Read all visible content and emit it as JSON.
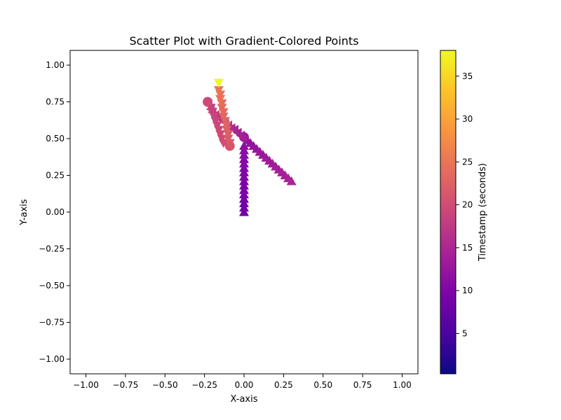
{
  "chart_data": {
    "type": "scatter",
    "title": "Scatter Plot with Gradient-Colored Points",
    "xlabel": "X-axis",
    "ylabel": "Y-axis",
    "xlim": [
      -1.1,
      1.1
    ],
    "ylim": [
      -1.1,
      1.1
    ],
    "x_ticks": [
      -1.0,
      -0.75,
      -0.5,
      -0.25,
      0.0,
      0.25,
      0.5,
      0.75,
      1.0
    ],
    "y_ticks": [
      -1.0,
      -0.75,
      -0.5,
      -0.25,
      0.0,
      0.25,
      0.5,
      0.75,
      1.0
    ],
    "x_tick_labels": [
      "−1.00",
      "−0.75",
      "−0.50",
      "−0.25",
      "0.00",
      "0.25",
      "0.50",
      "0.75",
      "1.00"
    ],
    "y_tick_labels": [
      "−1.00",
      "−0.75",
      "−0.50",
      "−0.25",
      "0.00",
      "0.25",
      "0.50",
      "0.75",
      "1.00"
    ],
    "grid": false,
    "colorbar": {
      "label": "Timestamp (seconds)",
      "colormap": "plasma",
      "range": [
        0.3,
        38
      ],
      "ticks": [
        5,
        10,
        15,
        20,
        25,
        30,
        35
      ],
      "tick_labels": [
        "5",
        "10",
        "15",
        "20",
        "25",
        "30",
        "35"
      ]
    },
    "series": [
      {
        "marker": "triangle-up",
        "points": [
          {
            "x": 0.0,
            "y": 0.0,
            "t": 8.5
          },
          {
            "x": 0.0,
            "y": 0.03,
            "t": 8.6
          },
          {
            "x": 0.0,
            "y": 0.06,
            "t": 8.8
          },
          {
            "x": 0.0,
            "y": 0.09,
            "t": 9.0
          },
          {
            "x": 0.0,
            "y": 0.12,
            "t": 9.2
          },
          {
            "x": 0.0,
            "y": 0.15,
            "t": 9.4
          },
          {
            "x": 0.0,
            "y": 0.18,
            "t": 9.6
          },
          {
            "x": 0.0,
            "y": 0.21,
            "t": 9.8
          },
          {
            "x": 0.0,
            "y": 0.24,
            "t": 10.0
          },
          {
            "x": 0.0,
            "y": 0.27,
            "t": 10.2
          },
          {
            "x": 0.0,
            "y": 0.3,
            "t": 10.4
          },
          {
            "x": 0.0,
            "y": 0.33,
            "t": 10.6
          },
          {
            "x": 0.0,
            "y": 0.36,
            "t": 10.8
          },
          {
            "x": 0.0,
            "y": 0.39,
            "t": 11.0
          },
          {
            "x": 0.0,
            "y": 0.42,
            "t": 11.2
          },
          {
            "x": 0.0,
            "y": 0.45,
            "t": 11.4
          }
        ]
      },
      {
        "marker": "triangle-up",
        "points": [
          {
            "x": 0.3,
            "y": 0.21,
            "t": 14.8
          },
          {
            "x": 0.28,
            "y": 0.23,
            "t": 14.6
          },
          {
            "x": 0.26,
            "y": 0.25,
            "t": 14.4
          },
          {
            "x": 0.24,
            "y": 0.27,
            "t": 14.2
          },
          {
            "x": 0.22,
            "y": 0.29,
            "t": 14.0
          },
          {
            "x": 0.2,
            "y": 0.31,
            "t": 13.8
          },
          {
            "x": 0.18,
            "y": 0.33,
            "t": 13.6
          },
          {
            "x": 0.16,
            "y": 0.35,
            "t": 13.4
          },
          {
            "x": 0.14,
            "y": 0.37,
            "t": 13.2
          },
          {
            "x": 0.12,
            "y": 0.39,
            "t": 13.0
          },
          {
            "x": 0.1,
            "y": 0.41,
            "t": 12.8
          },
          {
            "x": 0.08,
            "y": 0.43,
            "t": 12.6
          },
          {
            "x": 0.06,
            "y": 0.45,
            "t": 12.4
          },
          {
            "x": 0.04,
            "y": 0.47,
            "t": 12.2
          },
          {
            "x": 0.02,
            "y": 0.49,
            "t": 12.0
          }
        ]
      },
      {
        "marker": "circle",
        "points": [
          {
            "x": 0.0,
            "y": 0.51,
            "t": 13.5
          }
        ]
      },
      {
        "marker": "triangle-left",
        "points": [
          {
            "x": -0.02,
            "y": 0.52,
            "t": 14.0
          },
          {
            "x": -0.04,
            "y": 0.54,
            "t": 14.4
          },
          {
            "x": -0.06,
            "y": 0.56,
            "t": 14.8
          },
          {
            "x": -0.08,
            "y": 0.57,
            "t": 15.2
          },
          {
            "x": -0.1,
            "y": 0.59,
            "t": 15.6
          },
          {
            "x": -0.12,
            "y": 0.61,
            "t": 16.0
          },
          {
            "x": -0.14,
            "y": 0.63,
            "t": 16.4
          },
          {
            "x": -0.16,
            "y": 0.64,
            "t": 16.8
          },
          {
            "x": -0.18,
            "y": 0.66,
            "t": 17.2
          },
          {
            "x": -0.2,
            "y": 0.68,
            "t": 17.6
          },
          {
            "x": -0.21,
            "y": 0.7,
            "t": 18.0
          }
        ]
      },
      {
        "marker": "triangle-down",
        "points": [
          {
            "x": -0.21,
            "y": 0.71,
            "t": 18.4
          },
          {
            "x": -0.2,
            "y": 0.68,
            "t": 18.6
          },
          {
            "x": -0.19,
            "y": 0.65,
            "t": 18.8
          },
          {
            "x": -0.18,
            "y": 0.62,
            "t": 19.0
          },
          {
            "x": -0.17,
            "y": 0.59,
            "t": 19.2
          },
          {
            "x": -0.16,
            "y": 0.56,
            "t": 19.4
          },
          {
            "x": -0.15,
            "y": 0.53,
            "t": 19.6
          },
          {
            "x": -0.14,
            "y": 0.5,
            "t": 19.8
          },
          {
            "x": -0.13,
            "y": 0.47,
            "t": 20.0
          }
        ]
      },
      {
        "marker": "circle",
        "points": [
          {
            "x": -0.23,
            "y": 0.75,
            "t": 19.5
          },
          {
            "x": -0.09,
            "y": 0.45,
            "t": 21.0
          }
        ]
      },
      {
        "marker": "triangle-down",
        "points": [
          {
            "x": -0.09,
            "y": 0.47,
            "t": 21.5
          },
          {
            "x": -0.1,
            "y": 0.5,
            "t": 21.8
          },
          {
            "x": -0.1,
            "y": 0.53,
            "t": 22.1
          },
          {
            "x": -0.11,
            "y": 0.56,
            "t": 22.4
          },
          {
            "x": -0.11,
            "y": 0.59,
            "t": 22.7
          },
          {
            "x": -0.12,
            "y": 0.62,
            "t": 23.0
          },
          {
            "x": -0.13,
            "y": 0.65,
            "t": 23.3
          },
          {
            "x": -0.13,
            "y": 0.68,
            "t": 23.6
          },
          {
            "x": -0.14,
            "y": 0.71,
            "t": 23.9
          },
          {
            "x": -0.14,
            "y": 0.74,
            "t": 24.2
          },
          {
            "x": -0.15,
            "y": 0.77,
            "t": 24.5
          },
          {
            "x": -0.15,
            "y": 0.8,
            "t": 24.8
          },
          {
            "x": -0.16,
            "y": 0.83,
            "t": 25.1
          }
        ]
      },
      {
        "marker": "triangle-down",
        "points": [
          {
            "x": -0.16,
            "y": 0.88,
            "t": 38.0
          }
        ]
      }
    ]
  }
}
